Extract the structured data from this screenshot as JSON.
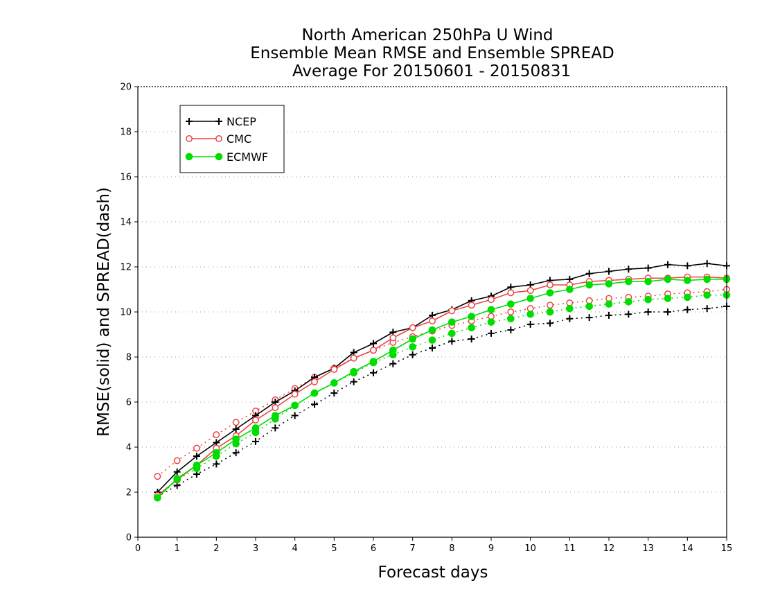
{
  "chart_data": {
    "type": "line",
    "title": [
      "North American 250hPa U Wind",
      "Ensemble Mean RMSE and Ensemble SPREAD",
      "Average For 20150601 - 20150831"
    ],
    "xlabel": "Forecast days",
    "ylabel": "RMSE(solid) and SPREAD(dash)",
    "xlim": [
      0,
      15
    ],
    "ylim": [
      0,
      20
    ],
    "x_ticks": [
      0,
      1,
      2,
      3,
      4,
      5,
      6,
      7,
      8,
      9,
      10,
      11,
      12,
      13,
      14,
      15
    ],
    "y_ticks": [
      0,
      2,
      4,
      6,
      8,
      10,
      12,
      14,
      16,
      18,
      20
    ],
    "grid": "horizontal dotted",
    "legend_position": "top-left",
    "x": [
      0.5,
      1,
      1.5,
      2,
      2.5,
      3,
      3.5,
      4,
      4.5,
      5,
      5.5,
      6,
      6.5,
      7,
      7.5,
      8,
      8.5,
      9,
      9.5,
      10,
      10.5,
      11,
      11.5,
      12,
      12.5,
      13,
      13.5,
      14,
      14.5,
      15
    ],
    "series": [
      {
        "name": "NCEP",
        "color": "#000000",
        "marker": "plus",
        "rmse": [
          2.0,
          2.9,
          3.6,
          4.2,
          4.8,
          5.4,
          6.0,
          6.5,
          7.1,
          7.5,
          8.2,
          8.6,
          9.1,
          9.3,
          9.85,
          10.1,
          10.5,
          10.7,
          11.1,
          11.2,
          11.4,
          11.45,
          11.7,
          11.8,
          11.9,
          11.95,
          12.1,
          12.05,
          12.15,
          12.05
        ],
        "spread": [
          1.8,
          2.3,
          2.8,
          3.25,
          3.75,
          4.25,
          4.85,
          5.4,
          5.9,
          6.4,
          6.9,
          7.3,
          7.7,
          8.1,
          8.4,
          8.7,
          8.8,
          9.05,
          9.2,
          9.45,
          9.5,
          9.7,
          9.75,
          9.85,
          9.9,
          10.0,
          10.0,
          10.1,
          10.15,
          10.25
        ]
      },
      {
        "name": "CMC",
        "color": "#f04040",
        "marker": "circle-open",
        "rmse": [
          1.85,
          2.55,
          3.2,
          3.95,
          4.5,
          5.2,
          5.75,
          6.35,
          6.9,
          7.45,
          7.95,
          8.3,
          8.85,
          9.3,
          9.6,
          10.05,
          10.3,
          10.55,
          10.85,
          10.95,
          11.2,
          11.2,
          11.35,
          11.4,
          11.45,
          11.5,
          11.5,
          11.55,
          11.55,
          11.5
        ],
        "spread": [
          2.7,
          3.4,
          3.95,
          4.55,
          5.1,
          5.6,
          6.1,
          6.6,
          7.1,
          7.5,
          7.95,
          8.3,
          8.65,
          8.9,
          9.15,
          9.4,
          9.6,
          9.8,
          10.0,
          10.15,
          10.3,
          10.4,
          10.5,
          10.6,
          10.65,
          10.7,
          10.8,
          10.85,
          10.9,
          11.0
        ]
      },
      {
        "name": "ECMWF",
        "color": "#00dd00",
        "marker": "circle-filled",
        "rmse": [
          1.75,
          2.6,
          3.2,
          3.75,
          4.35,
          4.85,
          5.4,
          5.85,
          6.4,
          6.85,
          7.35,
          7.8,
          8.3,
          8.8,
          9.2,
          9.55,
          9.8,
          10.1,
          10.35,
          10.6,
          10.85,
          11.0,
          11.2,
          11.25,
          11.35,
          11.35,
          11.45,
          11.4,
          11.45,
          11.45
        ],
        "spread": [
          1.75,
          2.55,
          3.05,
          3.6,
          4.15,
          4.65,
          5.25,
          5.85,
          6.4,
          6.85,
          7.3,
          7.75,
          8.1,
          8.45,
          8.75,
          9.05,
          9.3,
          9.55,
          9.7,
          9.9,
          10.0,
          10.15,
          10.25,
          10.35,
          10.45,
          10.55,
          10.6,
          10.65,
          10.75,
          10.75
        ]
      }
    ]
  }
}
